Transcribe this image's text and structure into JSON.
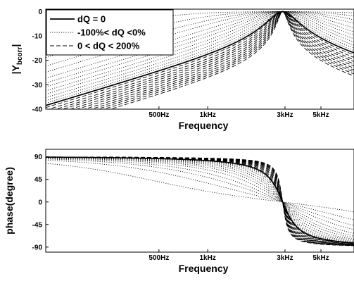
{
  "chart_data": [
    {
      "type": "line",
      "xscale": "log",
      "xlim": [
        100,
        8000
      ],
      "ylim": [
        -40,
        1
      ],
      "xticks": [
        {
          "v": 500,
          "label": "500Hz"
        },
        {
          "v": 1000,
          "label": "1kHz"
        },
        {
          "v": 3000,
          "label": "3kHz"
        },
        {
          "v": 5000,
          "label": "5kHz"
        }
      ],
      "yticks": [
        {
          "v": 0,
          "label": "0"
        },
        {
          "v": -10,
          "label": "-10"
        },
        {
          "v": -20,
          "label": "-20"
        },
        {
          "v": -30,
          "label": "-30"
        },
        {
          "v": -40,
          "label": "-40"
        }
      ],
      "xlabel": "Frequency",
      "ylabel_main": "|Y",
      "ylabel_sub": "bcorr",
      "ylabel_end": "|",
      "legend_position": "top-left",
      "f0": 2900,
      "series": [
        {
          "name": "dQ = 0",
          "style": "solid",
          "Q": [
            2.9
          ]
        },
        {
          "name": "-100%< dQ <0%",
          "style": "dotted",
          "Q": [
            0.15,
            0.3,
            0.45,
            0.6,
            0.8,
            1.0,
            1.2,
            1.45,
            1.7,
            2.0,
            2.3,
            2.6
          ]
        },
        {
          "name": "0 < dQ < 200%",
          "style": "dashed",
          "Q": [
            3.2,
            3.6,
            4.0,
            4.4,
            4.9,
            5.4,
            6.0,
            6.6,
            7.2,
            7.9,
            8.7
          ]
        }
      ]
    },
    {
      "type": "line",
      "xscale": "log",
      "xlim": [
        100,
        8000
      ],
      "ylim": [
        -100,
        105
      ],
      "xticks": [
        {
          "v": 500,
          "label": "500Hz"
        },
        {
          "v": 1000,
          "label": "1kHz"
        },
        {
          "v": 3000,
          "label": "3kHz"
        },
        {
          "v": 5000,
          "label": "5kHz"
        }
      ],
      "yticks": [
        {
          "v": 90,
          "label": "90"
        },
        {
          "v": 45,
          "label": "45"
        },
        {
          "v": 0,
          "label": "0"
        },
        {
          "v": -45,
          "label": "-45"
        },
        {
          "v": -90,
          "label": "-90"
        }
      ],
      "xlabel": "Frequency",
      "ylabel": "phase(degree)",
      "f0": 2900
    }
  ]
}
